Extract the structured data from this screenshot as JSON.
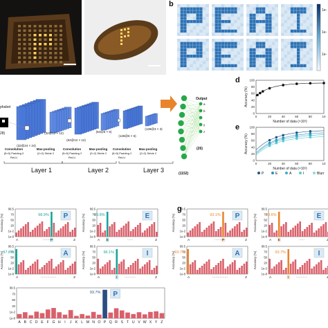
{
  "panels": {
    "b": "b",
    "d": "d",
    "e": "e",
    "g": "g"
  },
  "heatmap": {
    "letters": [
      "P",
      "E",
      "A",
      "I",
      "P",
      "E",
      "A",
      "I"
    ],
    "colorbar": [
      "1e-",
      "1e-",
      "1e-"
    ]
  },
  "cnn": {
    "input_label": "phabet",
    "input_size": "28)",
    "fm": [
      "(32@24 × 24)",
      "(32@12 × 12)",
      "(64@12 × 12)",
      "(64@6 × 6)",
      "(128@6 × 6)",
      "(128@3 × 3)"
    ],
    "layers": [
      "Layer 1",
      "Layer 2",
      "Layer 3"
    ],
    "ops": [
      {
        "title": "Convolution",
        "params": "(5×5) Padding 0",
        "act": "ReLU"
      },
      {
        "title": "Max-pooling",
        "params": "(2×2) Stride 2",
        "act": ""
      },
      {
        "title": "Convolution",
        "params": "(5×5) Padding 2",
        "act": "ReLU"
      },
      {
        "title": "Max-pooling",
        "params": "(2×2) Stride 2",
        "act": ""
      },
      {
        "title": "Convolution",
        "params": "(5×5) Padding 2",
        "act": "ReLU"
      },
      {
        "title": "Max-pooling",
        "params": "(2×2) Stride 2",
        "act": ""
      }
    ],
    "output_title": "Output",
    "nodes_in": "(1152)",
    "nodes_out": "(26)",
    "out_letters": [
      "a",
      "b",
      "",
      "y",
      "z"
    ]
  },
  "plot_d": {
    "ylabel": "Accuracy (%)",
    "xlabel": "Number of data (×10³)",
    "yticks": [
      "0",
      "20",
      "40",
      "60",
      "80",
      "100"
    ],
    "xticks": [
      "0",
      "20",
      "40",
      "60",
      "80",
      "10"
    ]
  },
  "plot_e": {
    "ylabel": "Accuracy (%)",
    "xlabel": "Number of data (×10³)",
    "yticks": [
      "0",
      "20",
      "40",
      "60",
      "80",
      "100"
    ],
    "xticks": [
      "0",
      "20",
      "40",
      "60",
      "80",
      "10"
    ],
    "legend": [
      "P",
      "E",
      "A",
      "I",
      "Blurr"
    ]
  },
  "bar_axis": {
    "ylabel": "Accuracy (%)",
    "yticks": [
      "99.5",
      "70",
      "50",
      "20",
      "1e-2",
      "1e-8"
    ]
  },
  "bar_axis_small": {
    "yticks": [
      "99.5",
      "70",
      "50",
      "20",
      "1e-2",
      "1e-8"
    ]
  },
  "bars_f": [
    {
      "letter": "P",
      "acc": "98.9%",
      "left": "A",
      "mid": "P",
      "right": "Z",
      "dots": "··········"
    },
    {
      "letter": "E",
      "acc": "99.8%",
      "left": "A",
      "mid": "E",
      "right": "Z",
      "dots": "·····"
    },
    {
      "letter": "A",
      "acc": "97.8%",
      "left": "A",
      "mid": "",
      "right": "Z",
      "dots": "··············"
    },
    {
      "letter": "I",
      "acc": "96.1%",
      "left": "A",
      "mid": "I",
      "right": "Z",
      "dots": "··········"
    }
  ],
  "bars_g": [
    {
      "letter": "P",
      "acc": "93.1%",
      "left": "A",
      "mid": "P",
      "right": "Z",
      "dots": "··········"
    },
    {
      "letter": "E",
      "acc": "99.6%",
      "left": "A",
      "mid": "E",
      "right": "Z",
      "dots": "·····"
    },
    {
      "letter": "A",
      "acc": "93.7%",
      "left": "A",
      "mid": "",
      "right": "Z",
      "dots": "··············"
    },
    {
      "letter": "I",
      "acc": "93.7%",
      "left": "A",
      "mid": "I",
      "right": "Z",
      "dots": "··········"
    }
  ],
  "bar_h": {
    "letter": "P",
    "acc": "93.7%",
    "alphabet": [
      "A",
      "B",
      "C",
      "D",
      "E",
      "F",
      "G",
      "H",
      "I",
      "J",
      "K",
      "L",
      "M",
      "N",
      "O",
      "P",
      "Q",
      "R",
      "S",
      "T",
      "U",
      "V",
      "W",
      "X",
      "Y",
      "Z"
    ],
    "values": [
      14,
      20,
      10,
      22,
      17,
      29,
      34,
      20,
      12,
      27,
      8,
      14,
      9,
      21,
      12,
      93.7,
      19,
      33,
      26,
      19,
      14,
      20,
      13,
      21,
      23,
      17
    ]
  },
  "colors": {
    "teal": "#1aa39a",
    "orange": "#e8852c",
    "navy": "#2c4f82",
    "bar": "#d9606a",
    "cube": "#3f6fd1"
  }
}
